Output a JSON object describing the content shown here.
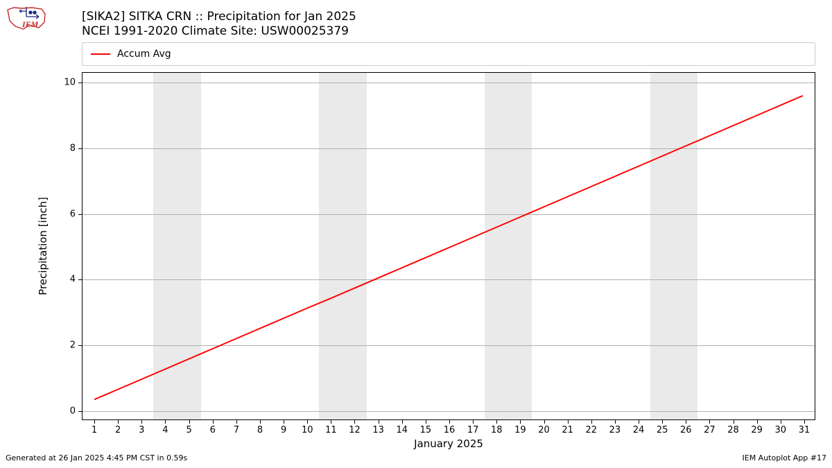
{
  "logo": {
    "text": "IEM",
    "outline_color": "#c62828",
    "glyph_color": "#1a237e",
    "text_color": "#c62828"
  },
  "title": {
    "line1": "[SIKA2] SITKA CRN :: Precipitation for Jan 2025",
    "line2": "NCEI 1991-2020 Climate Site: USW00025379",
    "fontsize": 17,
    "color": "#000000"
  },
  "legend": {
    "label": "Accum Avg",
    "swatch_color": "#ff0000",
    "border_color": "#cccccc"
  },
  "chart": {
    "type": "line",
    "background_color": "#ffffff",
    "border_color": "#000000",
    "grid_color": "#b0b0b0",
    "weekend_band_color": "#eaeaea",
    "weekend_bands": [
      {
        "start": 3.5,
        "end": 5.5
      },
      {
        "start": 10.5,
        "end": 12.5
      },
      {
        "start": 17.5,
        "end": 19.5
      },
      {
        "start": 24.5,
        "end": 26.5
      }
    ],
    "ylabel": "Precipitation [inch]",
    "xlabel": "January 2025",
    "label_fontsize": 15,
    "tick_fontsize": 13,
    "xlim": [
      0.5,
      31.5
    ],
    "ylim": [
      -0.3,
      10.3
    ],
    "yticks": [
      0,
      2,
      4,
      6,
      8,
      10
    ],
    "xticks": [
      1,
      2,
      3,
      4,
      5,
      6,
      7,
      8,
      9,
      10,
      11,
      12,
      13,
      14,
      15,
      16,
      17,
      18,
      19,
      20,
      21,
      22,
      23,
      24,
      25,
      26,
      27,
      28,
      29,
      30,
      31
    ],
    "series": {
      "name": "Accum Avg",
      "color": "#ff0000",
      "line_width": 2,
      "x": [
        1,
        2,
        3,
        4,
        5,
        6,
        7,
        8,
        9,
        10,
        11,
        12,
        13,
        14,
        15,
        16,
        17,
        18,
        19,
        20,
        21,
        22,
        23,
        24,
        25,
        26,
        27,
        28,
        29,
        30,
        31
      ],
      "y": [
        0.31,
        0.62,
        0.93,
        1.24,
        1.55,
        1.86,
        2.17,
        2.48,
        2.79,
        3.1,
        3.4,
        3.71,
        4.02,
        4.33,
        4.64,
        4.95,
        5.26,
        5.57,
        5.88,
        6.19,
        6.5,
        6.81,
        7.12,
        7.43,
        7.74,
        8.05,
        8.36,
        8.67,
        8.98,
        9.29,
        9.6
      ]
    }
  },
  "footer": {
    "left": "Generated at 26 Jan 2025 4:45 PM CST in 0.59s",
    "right": "IEM Autoplot App #17",
    "fontsize": 11
  }
}
